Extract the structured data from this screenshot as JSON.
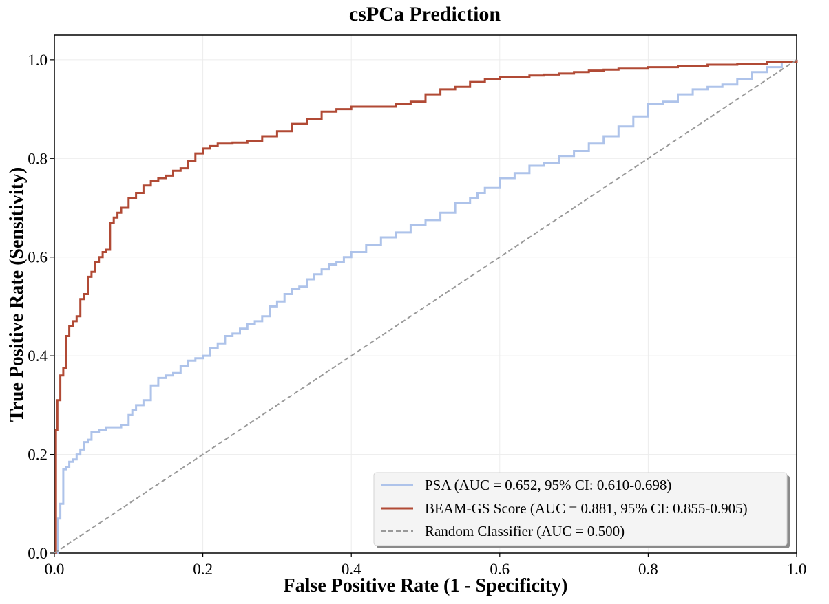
{
  "chart_data": {
    "type": "line",
    "title": "csPCa Prediction",
    "xlabel": "False Positive Rate (1 - Specificity)",
    "ylabel": "True Positive Rate (Sensitivity)",
    "xlim": [
      0,
      1
    ],
    "ylim": [
      0,
      1.05
    ],
    "xticks": [
      0.0,
      0.2,
      0.4,
      0.6,
      0.8,
      1.0
    ],
    "yticks": [
      0.0,
      0.2,
      0.4,
      0.6,
      0.8,
      1.0
    ],
    "xtick_labels": [
      "0.0",
      "0.2",
      "0.4",
      "0.6",
      "0.8",
      "1.0"
    ],
    "ytick_labels": [
      "0.0",
      "0.2",
      "0.4",
      "0.6",
      "0.8",
      "1.0"
    ],
    "grid": true,
    "legend_position": "lower-right",
    "series": [
      {
        "name": "PSA",
        "label": "PSA (AUC = 0.652, 95% CI: 0.610-0.698)",
        "color": "#aec3ea",
        "style": "solid",
        "x": [
          0.0,
          0.005,
          0.008,
          0.012,
          0.016,
          0.02,
          0.025,
          0.03,
          0.035,
          0.04,
          0.045,
          0.05,
          0.06,
          0.07,
          0.08,
          0.09,
          0.1,
          0.105,
          0.11,
          0.12,
          0.13,
          0.14,
          0.15,
          0.16,
          0.17,
          0.18,
          0.19,
          0.2,
          0.21,
          0.22,
          0.23,
          0.24,
          0.25,
          0.26,
          0.27,
          0.28,
          0.29,
          0.3,
          0.31,
          0.32,
          0.33,
          0.34,
          0.35,
          0.36,
          0.37,
          0.38,
          0.39,
          0.4,
          0.42,
          0.44,
          0.46,
          0.48,
          0.5,
          0.52,
          0.54,
          0.56,
          0.57,
          0.58,
          0.6,
          0.62,
          0.64,
          0.66,
          0.68,
          0.7,
          0.72,
          0.74,
          0.76,
          0.78,
          0.8,
          0.82,
          0.84,
          0.86,
          0.88,
          0.9,
          0.92,
          0.94,
          0.96,
          0.98,
          1.0
        ],
        "y": [
          0.0,
          0.07,
          0.1,
          0.17,
          0.175,
          0.185,
          0.19,
          0.2,
          0.21,
          0.225,
          0.23,
          0.245,
          0.25,
          0.255,
          0.255,
          0.26,
          0.28,
          0.29,
          0.3,
          0.31,
          0.34,
          0.355,
          0.36,
          0.365,
          0.38,
          0.39,
          0.395,
          0.4,
          0.415,
          0.425,
          0.44,
          0.445,
          0.455,
          0.465,
          0.47,
          0.48,
          0.5,
          0.51,
          0.525,
          0.535,
          0.54,
          0.555,
          0.565,
          0.575,
          0.585,
          0.59,
          0.6,
          0.61,
          0.625,
          0.64,
          0.65,
          0.665,
          0.675,
          0.69,
          0.71,
          0.72,
          0.73,
          0.74,
          0.76,
          0.77,
          0.785,
          0.79,
          0.805,
          0.815,
          0.83,
          0.845,
          0.865,
          0.885,
          0.91,
          0.915,
          0.93,
          0.94,
          0.945,
          0.95,
          0.96,
          0.975,
          0.985,
          0.995,
          1.0
        ]
      },
      {
        "name": "BEAM-GS Score",
        "label": "BEAM-GS Score (AUC = 0.881, 95% CI: 0.855-0.905)",
        "color": "#b14a35",
        "style": "solid",
        "x": [
          0.0,
          0.002,
          0.004,
          0.008,
          0.012,
          0.016,
          0.02,
          0.025,
          0.03,
          0.035,
          0.04,
          0.045,
          0.05,
          0.055,
          0.06,
          0.065,
          0.07,
          0.075,
          0.08,
          0.085,
          0.09,
          0.1,
          0.11,
          0.12,
          0.13,
          0.14,
          0.15,
          0.16,
          0.17,
          0.18,
          0.19,
          0.2,
          0.21,
          0.22,
          0.24,
          0.26,
          0.28,
          0.3,
          0.32,
          0.34,
          0.36,
          0.38,
          0.4,
          0.42,
          0.44,
          0.46,
          0.48,
          0.5,
          0.52,
          0.54,
          0.56,
          0.58,
          0.6,
          0.62,
          0.64,
          0.66,
          0.68,
          0.7,
          0.72,
          0.74,
          0.76,
          0.8,
          0.84,
          0.88,
          0.92,
          0.96,
          1.0
        ],
        "y": [
          0.0,
          0.25,
          0.31,
          0.36,
          0.375,
          0.44,
          0.46,
          0.47,
          0.48,
          0.515,
          0.525,
          0.56,
          0.57,
          0.59,
          0.6,
          0.61,
          0.615,
          0.67,
          0.68,
          0.69,
          0.7,
          0.72,
          0.73,
          0.745,
          0.755,
          0.76,
          0.765,
          0.775,
          0.78,
          0.795,
          0.81,
          0.82,
          0.825,
          0.83,
          0.832,
          0.835,
          0.845,
          0.855,
          0.87,
          0.88,
          0.895,
          0.9,
          0.905,
          0.905,
          0.905,
          0.91,
          0.915,
          0.93,
          0.94,
          0.945,
          0.955,
          0.96,
          0.965,
          0.965,
          0.968,
          0.97,
          0.972,
          0.975,
          0.978,
          0.98,
          0.982,
          0.985,
          0.988,
          0.99,
          0.992,
          0.995,
          1.0
        ]
      },
      {
        "name": "Random Classifier",
        "label": "Random Classifier (AUC = 0.500)",
        "color": "#999999",
        "style": "dashed",
        "x": [
          0.0,
          1.0
        ],
        "y": [
          0.0,
          1.0
        ]
      }
    ]
  }
}
